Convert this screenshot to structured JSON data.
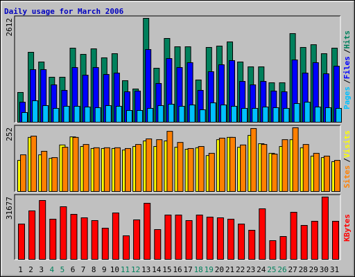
{
  "chart_data": [
    {
      "type": "bar",
      "title": "Daily usage for March 2006",
      "ylim": [
        0,
        2612
      ],
      "yticks": [
        2612
      ],
      "legend_separator": "/",
      "series": [
        {
          "name": "Hits",
          "color": "#00805c",
          "values": [
            749,
            1759,
            1515,
            1132,
            1132,
            1863,
            1707,
            1846,
            1620,
            1724,
            1045,
            836,
            2612,
            1358,
            2107,
            1898,
            1898,
            1062,
            1881,
            1915,
            2020,
            1515,
            1393,
            1393,
            993,
            993,
            2229,
            1881,
            1950,
            1724,
            1863
          ]
        },
        {
          "name": "Files",
          "color": "#0000ff",
          "values": [
            505,
            1323,
            1323,
            940,
            801,
            1376,
            1184,
            1376,
            1202,
            1236,
            766,
            784,
            1828,
            975,
            1602,
            1376,
            1498,
            801,
            1271,
            1445,
            1550,
            1027,
            940,
            1027,
            784,
            766,
            1567,
            1236,
            1498,
            1219,
            1410
          ]
        },
        {
          "name": "Pages",
          "color": "#00c0ff",
          "values": [
            244,
            540,
            418,
            348,
            401,
            401,
            383,
            366,
            418,
            401,
            296,
            296,
            348,
            418,
            453,
            401,
            435,
            313,
            488,
            435,
            401,
            348,
            348,
            383,
            366,
            348,
            470,
            505,
            383,
            366,
            348
          ]
        }
      ]
    },
    {
      "type": "bar",
      "ylim": [
        0,
        252
      ],
      "yticks": [
        252
      ],
      "legend_separator": "/",
      "series": [
        {
          "name": "Visits",
          "color": "#ffff00",
          "values": [
            123,
            214,
            145,
            131,
            184,
            216,
            178,
            170,
            170,
            170,
            164,
            178,
            200,
            178,
            200,
            175,
            167,
            173,
            142,
            205,
            214,
            175,
            222,
            189,
            151,
            178,
            205,
            173,
            140,
            134,
            118
          ]
        },
        {
          "name": "Sites",
          "color": "#ff8000",
          "values": [
            145,
            219,
            159,
            134,
            175,
            214,
            186,
            173,
            173,
            173,
            170,
            186,
            208,
            205,
            238,
            194,
            170,
            178,
            151,
            211,
            214,
            184,
            249,
            186,
            148,
            205,
            252,
            186,
            151,
            140,
            123
          ]
        }
      ]
    },
    {
      "type": "bar",
      "ylim": [
        0,
        31677
      ],
      "yticks": [
        31677
      ],
      "categories": [
        "1",
        "2",
        "3",
        "4",
        "5",
        "6",
        "7",
        "8",
        "9",
        "10",
        "11",
        "12",
        "13",
        "14",
        "15",
        "16",
        "17",
        "18",
        "19",
        "20",
        "21",
        "22",
        "23",
        "24",
        "25",
        "26",
        "27",
        "28",
        "29",
        "30",
        "31"
      ],
      "category_colors": [
        "#000000",
        "#000000",
        "#000000",
        "#00805c",
        "#00805c",
        "#000000",
        "#000000",
        "#000000",
        "#000000",
        "#000000",
        "#00805c",
        "#00805c",
        "#000000",
        "#000000",
        "#000000",
        "#000000",
        "#000000",
        "#00805c",
        "#00805c",
        "#000000",
        "#000000",
        "#000000",
        "#000000",
        "#000000",
        "#00805c",
        "#00805c",
        "#000000",
        "#000000",
        "#000000",
        "#000000",
        "#000000"
      ],
      "series": [
        {
          "name": "KBytes",
          "color": "#ff0000",
          "values": [
            17952,
            24640,
            29920,
            20416,
            26752,
            22880,
            21120,
            19712,
            15840,
            23584,
            11968,
            20064,
            28512,
            15136,
            22528,
            22528,
            19712,
            22528,
            21472,
            21120,
            20416,
            17952,
            14784,
            25696,
            9504,
            11616,
            23936,
            17248,
            19360,
            31677,
            19360
          ]
        }
      ]
    }
  ]
}
